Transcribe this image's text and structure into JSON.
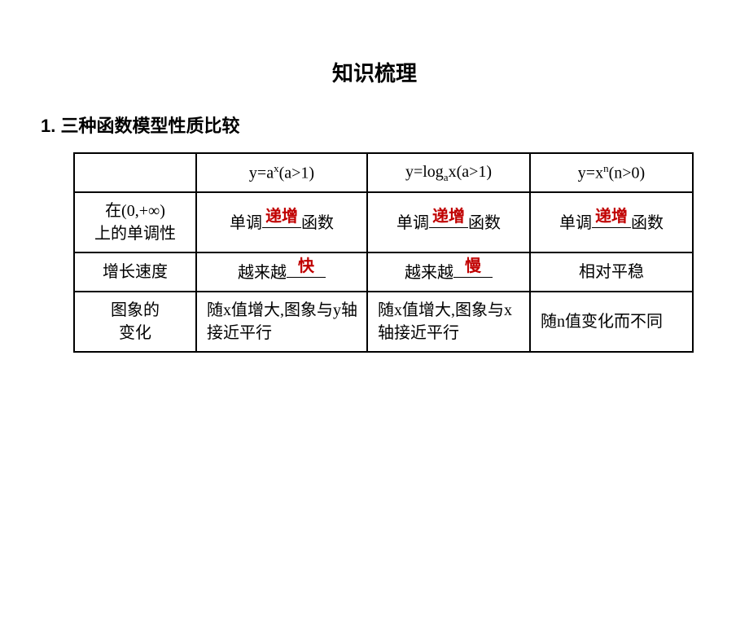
{
  "title": "知识梳理",
  "subtitle": "1. 三种函数模型性质比较",
  "headers": {
    "blank": "",
    "c1_pre": "y=a",
    "c1_sup": "x",
    "c1_post": "(a>1)",
    "c2_pre": "y=log",
    "c2_sub": "a",
    "c2_mid": "x(a>1)",
    "c3_pre": "y=x",
    "c3_sup": "n",
    "c3_post": "(n>0)"
  },
  "rows": {
    "r1_label_a": "在(0,+∞)",
    "r1_label_b": "上的单调性",
    "r1_prefix": "单调",
    "r1_suffix": "函数",
    "r1_ans": "递增",
    "r2_label": "增长速度",
    "r2_prefix": "越来越",
    "r2_ans1": "快",
    "r2_ans2": "慢",
    "r2_c3": "相对平稳",
    "r3_label_a": "图象的",
    "r3_label_b": "变化",
    "r3_c1": "随x值增大,图象与y轴接近平行",
    "r3_c2": "随x值增大,图象与x轴接近平行",
    "r3_c3": "随n值变化而不同"
  },
  "colors": {
    "answer": "#c00000",
    "text": "#000000",
    "border": "#000000",
    "bg": "#ffffff"
  }
}
